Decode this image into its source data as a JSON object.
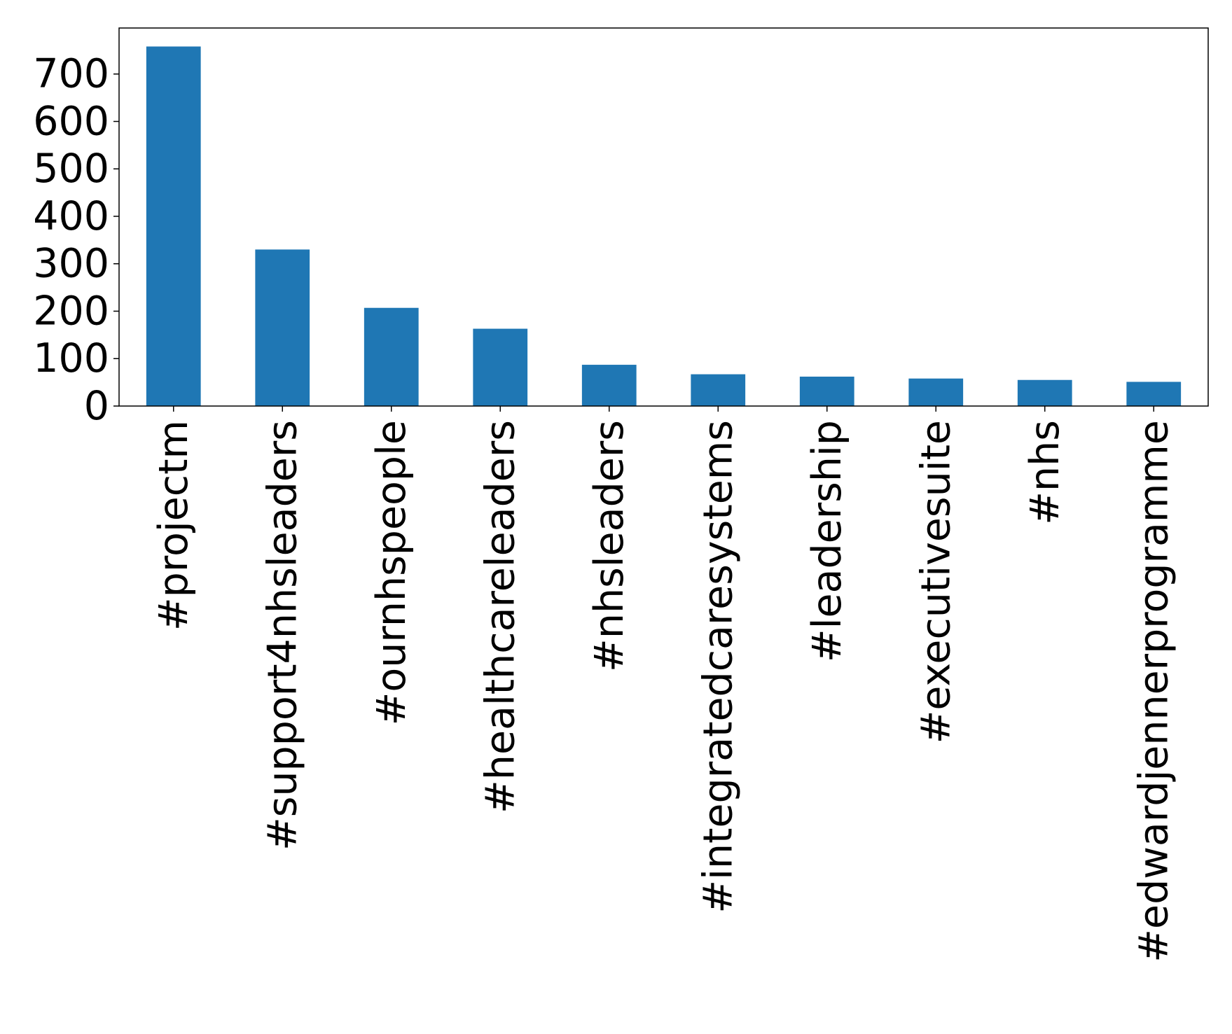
{
  "chart_data": {
    "type": "bar",
    "title": "",
    "xlabel": "",
    "ylabel": "",
    "categories": [
      "#projectm",
      "#support4nhsleaders",
      "#ournhspeople",
      "#healthcareleaders",
      "#nhsleaders",
      "#integratedcaresystems",
      "#leadership",
      "#executivesuite",
      "#nhs",
      "#edwardjennerprogramme"
    ],
    "values": [
      758,
      330,
      207,
      163,
      87,
      67,
      62,
      58,
      55,
      51
    ],
    "ylim": [
      0,
      797
    ],
    "yticks": [
      0,
      100,
      200,
      300,
      400,
      500,
      600,
      700
    ],
    "bar_color": "#1f77b4",
    "grid": false,
    "legend": "none"
  }
}
